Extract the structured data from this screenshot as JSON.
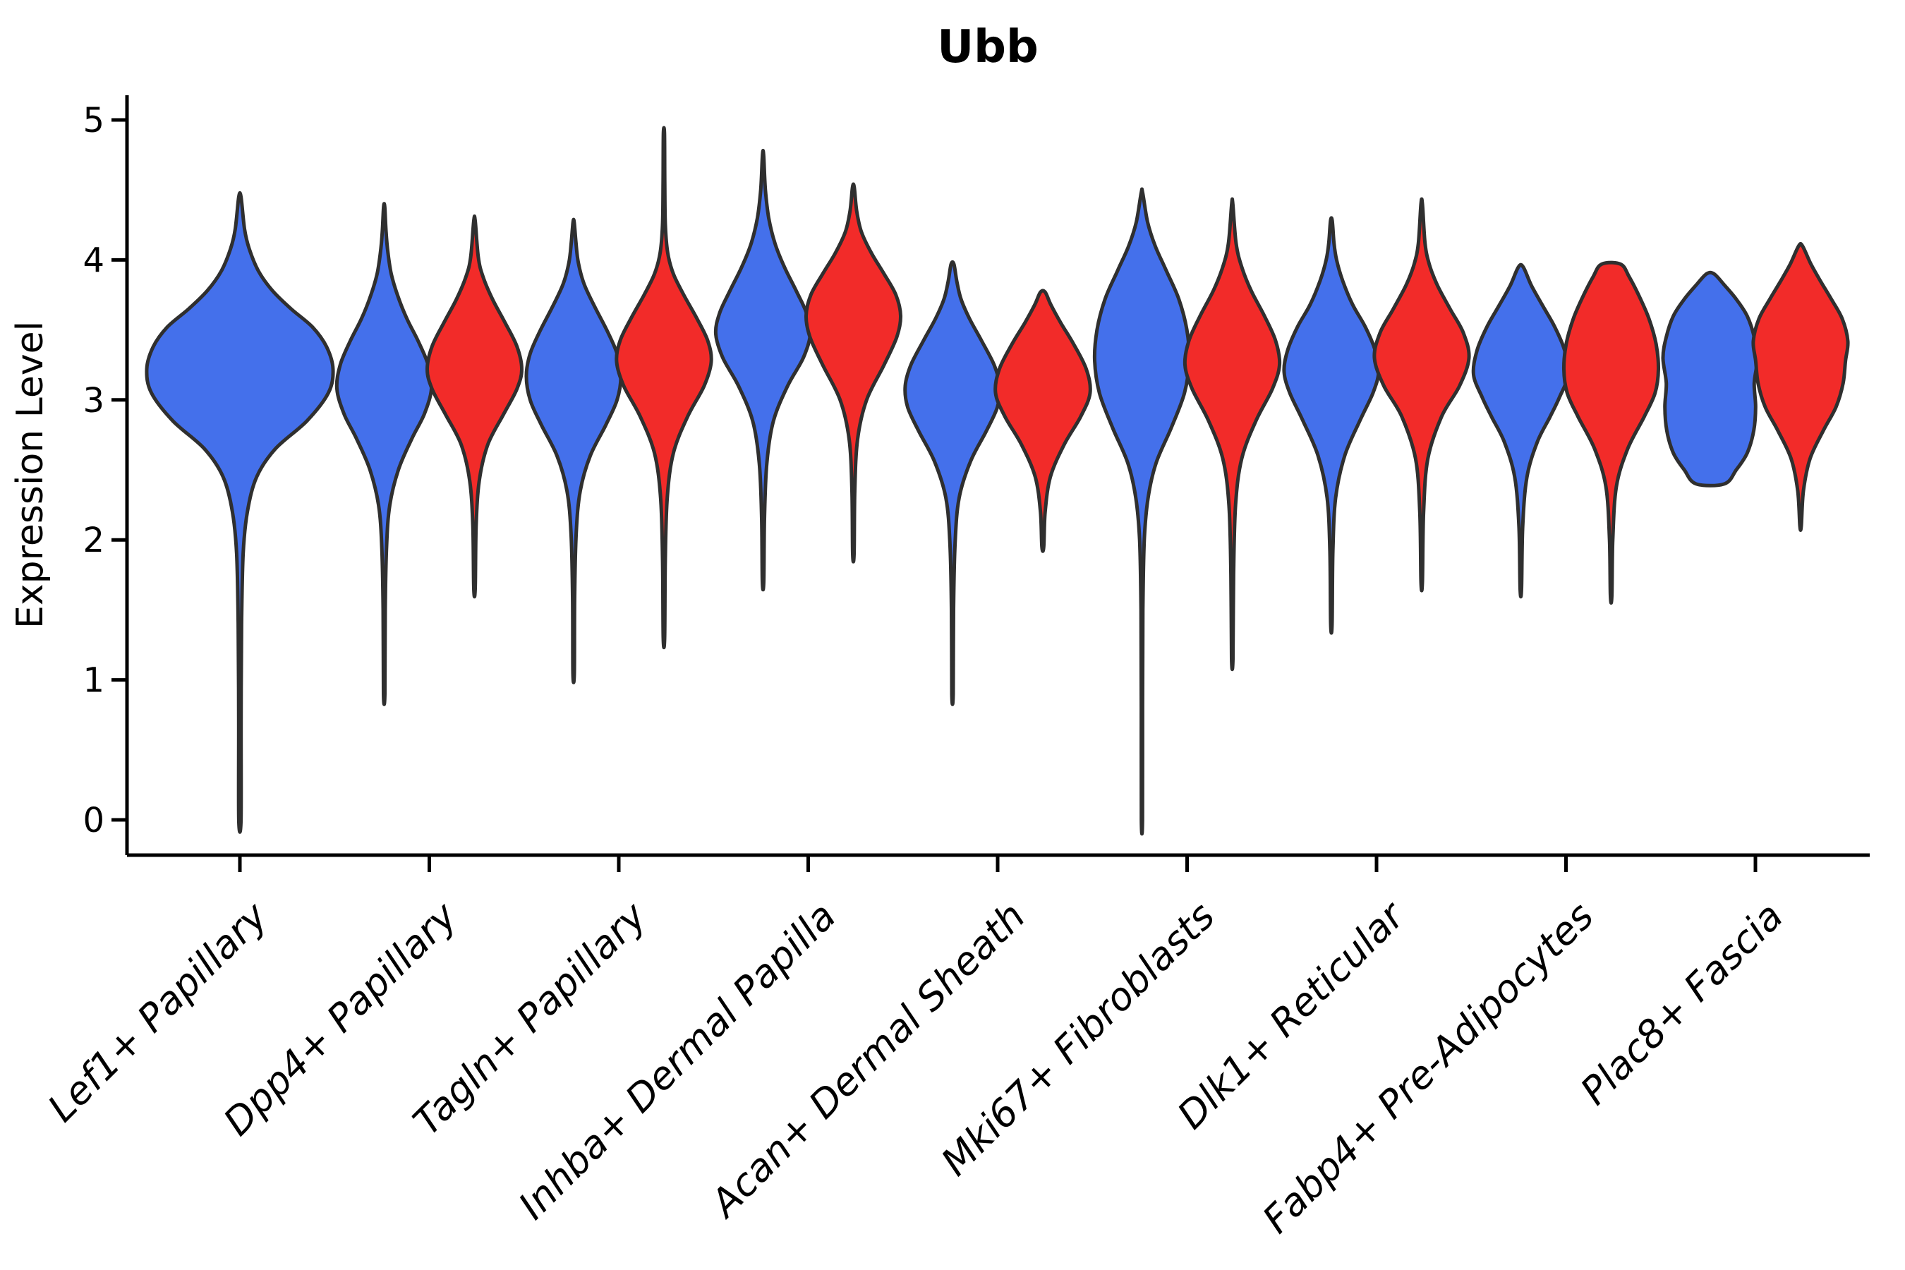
{
  "chart_data": {
    "type": "violin",
    "title": "Ubb",
    "ylabel": "Expression Level",
    "xlabel": "",
    "ylim": [
      0,
      5
    ],
    "yticks": [
      "0",
      "1",
      "2",
      "3",
      "4",
      "5"
    ],
    "grid": false,
    "legend": "none",
    "outline_color": "#2f2f2f",
    "series": [
      {
        "key": "blue",
        "color": "#4470EB"
      },
      {
        "key": "red",
        "color": "#F22B29"
      }
    ],
    "categories": [
      "Lef1+ Papillary",
      "Dpp4+ Papillary",
      "Tagln+ Papillary",
      "Inhba+ Dermal Papilla",
      "Acan+ Dermal Sheath",
      "Mki67+ Fibroblasts",
      "Dlk1+ Reticular",
      "Fabp4+ Pre-Adipocytes",
      "Plac8+ Fascia"
    ],
    "violins": [
      {
        "category_index": 0,
        "series": "blue",
        "layout": "single",
        "min": 0.0,
        "max": 4.45,
        "peak": 3.22,
        "profile": [
          [
            0.0,
            0.012
          ],
          [
            0.7,
            0.013
          ],
          [
            1.4,
            0.018
          ],
          [
            1.9,
            0.035
          ],
          [
            2.2,
            0.08
          ],
          [
            2.45,
            0.18
          ],
          [
            2.65,
            0.38
          ],
          [
            2.85,
            0.72
          ],
          [
            3.05,
            0.95
          ],
          [
            3.22,
            1.0
          ],
          [
            3.38,
            0.93
          ],
          [
            3.52,
            0.78
          ],
          [
            3.65,
            0.55
          ],
          [
            3.78,
            0.35
          ],
          [
            3.92,
            0.2
          ],
          [
            4.08,
            0.1
          ],
          [
            4.22,
            0.05
          ],
          [
            4.45,
            0.012
          ]
        ]
      },
      {
        "category_index": 1,
        "series": "blue",
        "layout": "left",
        "min": 0.9,
        "max": 4.38,
        "peak": 3.08,
        "profile": [
          [
            0.9,
            0.015
          ],
          [
            1.5,
            0.022
          ],
          [
            1.95,
            0.05
          ],
          [
            2.25,
            0.12
          ],
          [
            2.5,
            0.3
          ],
          [
            2.72,
            0.58
          ],
          [
            2.9,
            0.85
          ],
          [
            3.08,
            1.0
          ],
          [
            3.25,
            0.93
          ],
          [
            3.42,
            0.72
          ],
          [
            3.58,
            0.48
          ],
          [
            3.75,
            0.28
          ],
          [
            3.9,
            0.15
          ],
          [
            4.05,
            0.08
          ],
          [
            4.2,
            0.04
          ],
          [
            4.38,
            0.012
          ]
        ]
      },
      {
        "category_index": 1,
        "series": "red",
        "layout": "right",
        "min": 1.65,
        "max": 4.28,
        "peak": 3.22,
        "profile": [
          [
            1.65,
            0.015
          ],
          [
            2.1,
            0.035
          ],
          [
            2.42,
            0.1
          ],
          [
            2.68,
            0.28
          ],
          [
            2.9,
            0.62
          ],
          [
            3.08,
            0.9
          ],
          [
            3.22,
            1.0
          ],
          [
            3.38,
            0.9
          ],
          [
            3.55,
            0.65
          ],
          [
            3.72,
            0.38
          ],
          [
            3.88,
            0.18
          ],
          [
            4.02,
            0.08
          ],
          [
            4.28,
            0.015
          ]
        ]
      },
      {
        "category_index": 2,
        "series": "blue",
        "layout": "left",
        "min": 1.05,
        "max": 4.27,
        "peak": 3.17,
        "profile": [
          [
            1.05,
            0.015
          ],
          [
            1.6,
            0.022
          ],
          [
            2.05,
            0.055
          ],
          [
            2.35,
            0.14
          ],
          [
            2.6,
            0.35
          ],
          [
            2.82,
            0.68
          ],
          [
            3.0,
            0.92
          ],
          [
            3.17,
            1.0
          ],
          [
            3.33,
            0.92
          ],
          [
            3.5,
            0.7
          ],
          [
            3.67,
            0.44
          ],
          [
            3.83,
            0.22
          ],
          [
            3.98,
            0.1
          ],
          [
            4.12,
            0.05
          ],
          [
            4.27,
            0.012
          ]
        ]
      },
      {
        "category_index": 2,
        "series": "red",
        "layout": "right",
        "min": 1.3,
        "max": 4.9,
        "peak": 3.27,
        "profile": [
          [
            1.3,
            0.015
          ],
          [
            1.85,
            0.028
          ],
          [
            2.3,
            0.07
          ],
          [
            2.62,
            0.2
          ],
          [
            2.88,
            0.5
          ],
          [
            3.1,
            0.85
          ],
          [
            3.27,
            1.0
          ],
          [
            3.42,
            0.93
          ],
          [
            3.58,
            0.7
          ],
          [
            3.75,
            0.42
          ],
          [
            3.9,
            0.2
          ],
          [
            4.05,
            0.08
          ],
          [
            4.25,
            0.03
          ],
          [
            4.55,
            0.018
          ],
          [
            4.9,
            0.012
          ]
        ]
      },
      {
        "category_index": 3,
        "series": "blue",
        "layout": "left",
        "min": 1.7,
        "max": 4.75,
        "peak": 3.47,
        "profile": [
          [
            1.7,
            0.015
          ],
          [
            2.15,
            0.03
          ],
          [
            2.55,
            0.08
          ],
          [
            2.85,
            0.22
          ],
          [
            3.1,
            0.52
          ],
          [
            3.3,
            0.85
          ],
          [
            3.47,
            1.0
          ],
          [
            3.62,
            0.92
          ],
          [
            3.78,
            0.7
          ],
          [
            3.95,
            0.45
          ],
          [
            4.12,
            0.25
          ],
          [
            4.3,
            0.12
          ],
          [
            4.5,
            0.05
          ],
          [
            4.75,
            0.012
          ]
        ]
      },
      {
        "category_index": 3,
        "series": "red",
        "layout": "right",
        "min": 1.9,
        "max": 4.52,
        "peak": 3.6,
        "profile": [
          [
            1.9,
            0.015
          ],
          [
            2.35,
            0.03
          ],
          [
            2.72,
            0.09
          ],
          [
            3.0,
            0.28
          ],
          [
            3.25,
            0.65
          ],
          [
            3.45,
            0.92
          ],
          [
            3.6,
            1.0
          ],
          [
            3.75,
            0.9
          ],
          [
            3.9,
            0.65
          ],
          [
            4.05,
            0.38
          ],
          [
            4.2,
            0.17
          ],
          [
            4.35,
            0.07
          ],
          [
            4.52,
            0.018
          ]
        ]
      },
      {
        "category_index": 4,
        "series": "blue",
        "layout": "left",
        "min": 0.9,
        "max": 3.97,
        "peak": 3.1,
        "profile": [
          [
            0.9,
            0.015
          ],
          [
            1.5,
            0.022
          ],
          [
            1.98,
            0.055
          ],
          [
            2.3,
            0.14
          ],
          [
            2.56,
            0.38
          ],
          [
            2.78,
            0.72
          ],
          [
            2.95,
            0.95
          ],
          [
            3.1,
            1.0
          ],
          [
            3.25,
            0.88
          ],
          [
            3.42,
            0.62
          ],
          [
            3.58,
            0.36
          ],
          [
            3.72,
            0.18
          ],
          [
            3.85,
            0.09
          ],
          [
            3.97,
            0.03
          ]
        ]
      },
      {
        "category_index": 4,
        "series": "red",
        "layout": "right",
        "min": 1.95,
        "max": 3.77,
        "peak": 3.05,
        "profile": [
          [
            1.95,
            0.02
          ],
          [
            2.2,
            0.05
          ],
          [
            2.45,
            0.16
          ],
          [
            2.68,
            0.45
          ],
          [
            2.88,
            0.8
          ],
          [
            3.05,
            1.0
          ],
          [
            3.22,
            0.92
          ],
          [
            3.4,
            0.65
          ],
          [
            3.55,
            0.38
          ],
          [
            3.68,
            0.17
          ],
          [
            3.77,
            0.05
          ]
        ]
      },
      {
        "category_index": 5,
        "series": "blue",
        "layout": "left",
        "min": 0.0,
        "max": 4.48,
        "peak": 3.28,
        "profile": [
          [
            0.0,
            0.012
          ],
          [
            0.8,
            0.013
          ],
          [
            1.5,
            0.02
          ],
          [
            2.0,
            0.05
          ],
          [
            2.3,
            0.13
          ],
          [
            2.55,
            0.3
          ],
          [
            2.8,
            0.62
          ],
          [
            3.05,
            0.9
          ],
          [
            3.28,
            1.0
          ],
          [
            3.5,
            0.95
          ],
          [
            3.72,
            0.78
          ],
          [
            3.92,
            0.52
          ],
          [
            4.1,
            0.28
          ],
          [
            4.27,
            0.12
          ],
          [
            4.48,
            0.015
          ]
        ]
      },
      {
        "category_index": 5,
        "series": "red",
        "layout": "right",
        "min": 1.15,
        "max": 4.4,
        "peak": 3.25,
        "profile": [
          [
            1.15,
            0.015
          ],
          [
            1.75,
            0.028
          ],
          [
            2.25,
            0.07
          ],
          [
            2.58,
            0.2
          ],
          [
            2.85,
            0.5
          ],
          [
            3.08,
            0.85
          ],
          [
            3.25,
            1.0
          ],
          [
            3.42,
            0.92
          ],
          [
            3.6,
            0.68
          ],
          [
            3.78,
            0.4
          ],
          [
            3.95,
            0.2
          ],
          [
            4.12,
            0.08
          ],
          [
            4.4,
            0.012
          ]
        ]
      },
      {
        "category_index": 6,
        "series": "blue",
        "layout": "left",
        "min": 1.4,
        "max": 4.28,
        "peak": 3.2,
        "profile": [
          [
            1.4,
            0.015
          ],
          [
            1.92,
            0.032
          ],
          [
            2.3,
            0.09
          ],
          [
            2.6,
            0.28
          ],
          [
            2.85,
            0.6
          ],
          [
            3.05,
            0.88
          ],
          [
            3.2,
            1.0
          ],
          [
            3.35,
            0.93
          ],
          [
            3.52,
            0.72
          ],
          [
            3.68,
            0.45
          ],
          [
            3.85,
            0.24
          ],
          [
            4.0,
            0.11
          ],
          [
            4.12,
            0.055
          ],
          [
            4.28,
            0.018
          ]
        ]
      },
      {
        "category_index": 6,
        "series": "red",
        "layout": "right",
        "min": 1.7,
        "max": 4.4,
        "peak": 3.3,
        "profile": [
          [
            1.7,
            0.015
          ],
          [
            2.2,
            0.04
          ],
          [
            2.58,
            0.13
          ],
          [
            2.88,
            0.42
          ],
          [
            3.1,
            0.8
          ],
          [
            3.3,
            1.0
          ],
          [
            3.48,
            0.88
          ],
          [
            3.65,
            0.6
          ],
          [
            3.82,
            0.33
          ],
          [
            3.97,
            0.16
          ],
          [
            4.12,
            0.07
          ],
          [
            4.4,
            0.015
          ]
        ]
      },
      {
        "category_index": 7,
        "series": "blue",
        "layout": "left",
        "min": 1.65,
        "max": 3.95,
        "peak": 3.18,
        "profile": [
          [
            1.65,
            0.015
          ],
          [
            2.1,
            0.04
          ],
          [
            2.45,
            0.13
          ],
          [
            2.7,
            0.35
          ],
          [
            2.88,
            0.62
          ],
          [
            3.02,
            0.82
          ],
          [
            3.18,
            1.0
          ],
          [
            3.35,
            0.93
          ],
          [
            3.52,
            0.72
          ],
          [
            3.68,
            0.45
          ],
          [
            3.82,
            0.22
          ],
          [
            3.95,
            0.05
          ]
        ]
      },
      {
        "category_index": 7,
        "series": "red",
        "layout": "right",
        "min": 1.6,
        "max": 3.97,
        "peak": 3.22,
        "profile": [
          [
            1.6,
            0.015
          ],
          [
            2.0,
            0.035
          ],
          [
            2.38,
            0.11
          ],
          [
            2.65,
            0.35
          ],
          [
            2.88,
            0.7
          ],
          [
            3.05,
            0.93
          ],
          [
            3.22,
            1.0
          ],
          [
            3.4,
            0.95
          ],
          [
            3.58,
            0.8
          ],
          [
            3.75,
            0.58
          ],
          [
            3.88,
            0.38
          ],
          [
            3.97,
            0.2
          ]
        ]
      },
      {
        "category_index": 8,
        "series": "blue",
        "layout": "left",
        "min": 2.4,
        "max": 3.9,
        "peak": 3.3,
        "profile": [
          [
            2.4,
            0.3
          ],
          [
            2.5,
            0.55
          ],
          [
            2.62,
            0.78
          ],
          [
            2.78,
            0.92
          ],
          [
            2.95,
            0.96
          ],
          [
            3.12,
            0.93
          ],
          [
            3.3,
            1.0
          ],
          [
            3.45,
            0.93
          ],
          [
            3.6,
            0.78
          ],
          [
            3.72,
            0.55
          ],
          [
            3.82,
            0.3
          ],
          [
            3.9,
            0.08
          ]
        ]
      },
      {
        "category_index": 8,
        "series": "red",
        "layout": "right",
        "min": 2.1,
        "max": 4.1,
        "peak": 3.42,
        "profile": [
          [
            2.1,
            0.015
          ],
          [
            2.35,
            0.06
          ],
          [
            2.58,
            0.2
          ],
          [
            2.78,
            0.48
          ],
          [
            2.95,
            0.75
          ],
          [
            3.12,
            0.9
          ],
          [
            3.28,
            0.95
          ],
          [
            3.42,
            1.0
          ],
          [
            3.58,
            0.88
          ],
          [
            3.72,
            0.65
          ],
          [
            3.85,
            0.42
          ],
          [
            3.97,
            0.22
          ],
          [
            4.1,
            0.04
          ]
        ]
      }
    ]
  }
}
